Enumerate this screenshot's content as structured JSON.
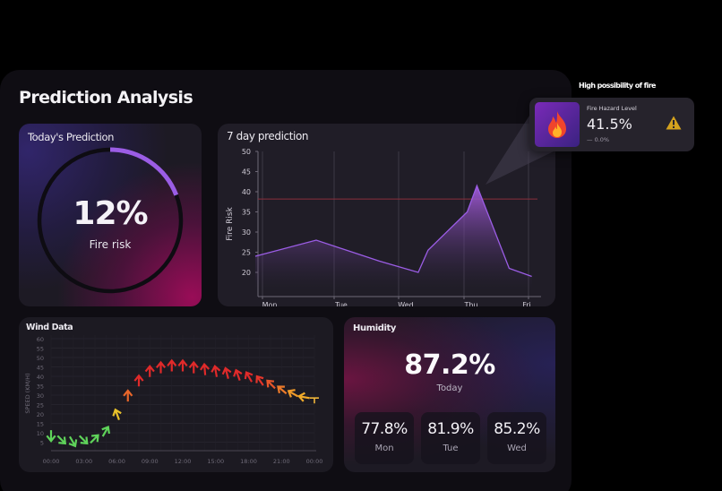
{
  "page": {
    "title": "Prediction Analysis"
  },
  "today": {
    "title": "Today's Prediction",
    "value": "12%",
    "label": "Fire risk",
    "progress_pct": 12,
    "accent": "#9b5de5"
  },
  "tooltip": {
    "heading": "High possibility of fire",
    "label": "Fire Hazard Level",
    "value": "41.5%",
    "delta": "— 0.0%",
    "icon": "fire-icon",
    "status_icon": "warning-icon",
    "warning_color": "#d4a21e"
  },
  "week": {
    "title": "7 day prediction"
  },
  "wind": {
    "title": "Wind Data"
  },
  "humidity": {
    "title": "Humidity",
    "today_value": "87.2%",
    "today_label": "Today",
    "days": [
      {
        "value": "77.8%",
        "label": "Mon"
      },
      {
        "value": "81.9%",
        "label": "Tue"
      },
      {
        "value": "85.2%",
        "label": "Wed"
      }
    ]
  },
  "chart_data": [
    {
      "type": "area",
      "title": "7 day prediction",
      "xlabel": "",
      "ylabel": "Fire Risk",
      "categories": [
        "Mon",
        "Tue",
        "Wed",
        "Thu",
        "Fri"
      ],
      "ylim": [
        17,
        50
      ],
      "yticks": [
        20,
        25,
        30,
        35,
        40,
        45,
        50
      ],
      "threshold": 38.2,
      "threshold_color": "#8a2f3c",
      "series": [
        {
          "name": "Fire Risk",
          "x": [
            -0.1,
            0.75,
            1.7,
            2.3,
            2.45,
            3.05,
            3.2,
            3.7,
            4.05
          ],
          "values": [
            24,
            28,
            22.8,
            20,
            25.5,
            35,
            41.5,
            21,
            19
          ],
          "color": "#9b5de5"
        }
      ],
      "grid": "vertical",
      "highlight": {
        "x": 3.2,
        "value": 41.5
      }
    },
    {
      "type": "scatter",
      "title": "Wind Data",
      "xlabel": "",
      "ylabel": "SPEED (KM/H)",
      "xticks": [
        "00:00",
        "03:00",
        "06:00",
        "09:00",
        "12:00",
        "15:00",
        "18:00",
        "21:00",
        "00:00"
      ],
      "ylim": [
        0,
        60
      ],
      "yticks": [
        5,
        10,
        15,
        20,
        25,
        30,
        35,
        40,
        45,
        50,
        55,
        60
      ],
      "hours": [
        0,
        1,
        2,
        3,
        4,
        5,
        6,
        7,
        8,
        9,
        10,
        11,
        12,
        13,
        14,
        15,
        16,
        17,
        18,
        19,
        20,
        21,
        22,
        23,
        24
      ],
      "speeds": [
        8,
        6,
        5,
        6,
        7,
        11,
        20,
        30,
        38,
        43,
        45,
        46,
        46,
        45,
        44,
        43,
        42,
        41,
        40,
        38,
        36,
        33,
        31,
        29,
        28
      ],
      "directions_deg": [
        0,
        315,
        330,
        315,
        225,
        210,
        160,
        180,
        180,
        180,
        180,
        180,
        180,
        180,
        175,
        170,
        165,
        160,
        150,
        145,
        135,
        130,
        120,
        100,
        90
      ],
      "colors": [
        "#5fd35a",
        "#5fd35a",
        "#5fd35a",
        "#5fd35a",
        "#5fd35a",
        "#5fd35a",
        "#e8c12a",
        "#e8662a",
        "#e02a2a",
        "#e02a2a",
        "#e02a2a",
        "#e02a2a",
        "#e02a2a",
        "#e02a2a",
        "#e02a2a",
        "#e02a2a",
        "#e02a2a",
        "#e02a2a",
        "#e02a2a",
        "#e3352a",
        "#e8562a",
        "#ec7a2a",
        "#f09a2a",
        "#f0aa2a",
        "#f0b63a"
      ],
      "grid": true
    }
  ]
}
